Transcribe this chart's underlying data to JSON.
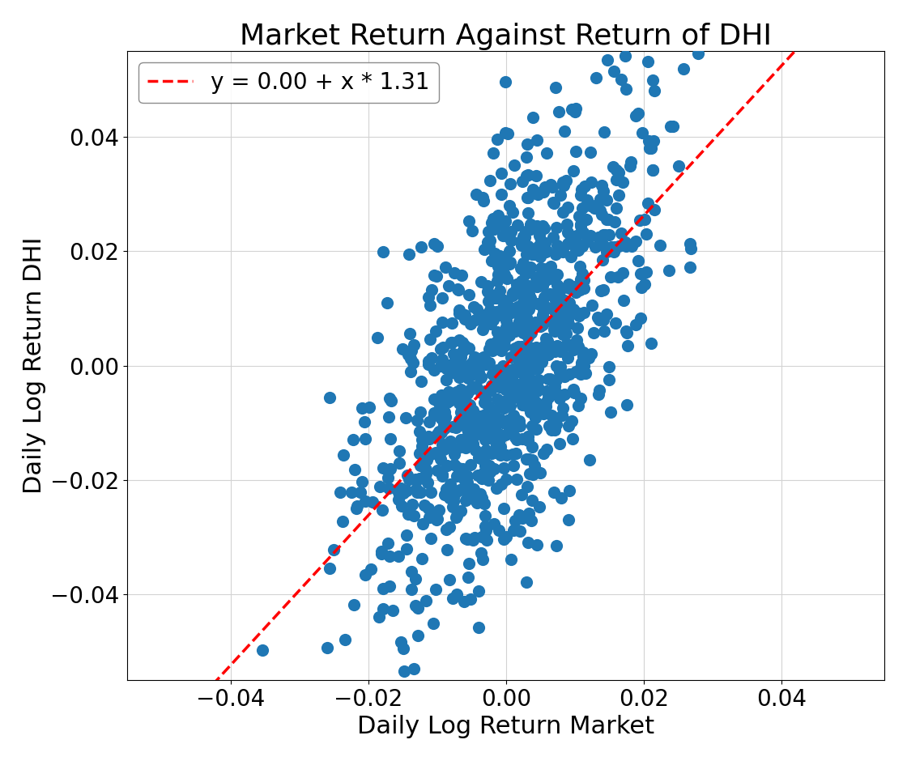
{
  "title": "Market Return Against Return of DHI",
  "xlabel": "Daily Log Return Market",
  "ylabel": "Daily Log Return DHI",
  "legend_label": "y = 0.00 + x * 1.31",
  "intercept": 0.0,
  "slope": 1.31,
  "xlim": [
    -0.055,
    0.055
  ],
  "ylim": [
    -0.055,
    0.055
  ],
  "xticks": [
    -0.04,
    -0.02,
    0.0,
    0.02,
    0.04
  ],
  "yticks": [
    -0.04,
    -0.02,
    0.0,
    0.02,
    0.04
  ],
  "dot_color": "#1f77b4",
  "line_color": "red",
  "dot_size": 120,
  "dot_alpha": 1.0,
  "seed": 1234,
  "n_points": 1000,
  "market_std": 0.01,
  "residual_std": 0.016,
  "title_fontsize": 26,
  "label_fontsize": 22,
  "tick_fontsize": 20,
  "legend_fontsize": 20,
  "fig_width": 11.2,
  "fig_height": 9.4
}
